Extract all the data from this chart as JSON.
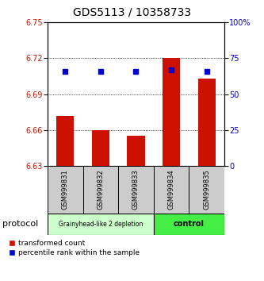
{
  "title": "GDS5113 / 10358733",
  "samples": [
    "GSM999831",
    "GSM999832",
    "GSM999833",
    "GSM999834",
    "GSM999835"
  ],
  "bar_values": [
    6.672,
    6.66,
    6.655,
    6.72,
    6.703
  ],
  "bar_base": 6.63,
  "percentile_values": [
    66,
    66,
    66,
    67,
    66
  ],
  "ylim_left": [
    6.63,
    6.75
  ],
  "ylim_right": [
    0,
    100
  ],
  "yticks_left": [
    6.63,
    6.66,
    6.69,
    6.72,
    6.75
  ],
  "yticks_right": [
    0,
    25,
    50,
    75,
    100
  ],
  "ytick_labels_right": [
    "0",
    "25",
    "50",
    "75",
    "100%"
  ],
  "bar_color": "#cc1100",
  "dot_color": "#0000cc",
  "group1_label": "Grainyhead-like 2 depletion",
  "group2_label": "control",
  "group1_color": "#ccffcc",
  "group2_color": "#44ee44",
  "group1_indices": [
    0,
    1,
    2
  ],
  "group2_indices": [
    3,
    4
  ],
  "protocol_label": "protocol",
  "legend_bar_label": "transformed count",
  "legend_dot_label": "percentile rank within the sample",
  "grid_color": "#000000"
}
